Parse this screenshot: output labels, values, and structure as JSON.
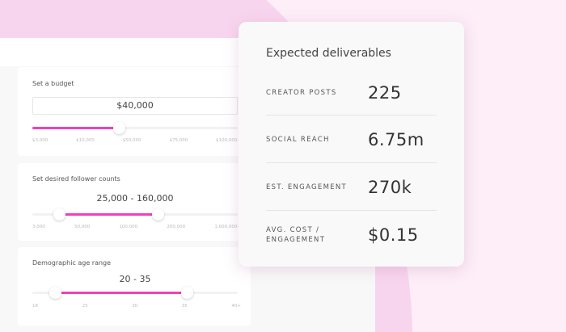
{
  "budget": {
    "label": "Set a budget",
    "value": "$40,000",
    "position": 0.42,
    "ticks": [
      "$3,000",
      "$10,000",
      "$50,000",
      "$75,000",
      "$100,000+"
    ]
  },
  "followers": {
    "label": "Set desired follower counts",
    "value": "25,000 - 160,000",
    "low": 0.13,
    "high": 0.61,
    "ticks": [
      "3,000",
      "50,000",
      "100,000",
      "200,000",
      "1,000,000+"
    ]
  },
  "age": {
    "label": "Demographic age range",
    "value": "20 - 35",
    "low": 0.11,
    "high": 0.75,
    "ticks": [
      "18",
      "25",
      "30",
      "35",
      "40+"
    ]
  },
  "deliverables": {
    "title": "Expected deliverables",
    "rows": [
      {
        "label": "CREATOR POSTS",
        "value": "225"
      },
      {
        "label": "SOCIAL REACH",
        "value": "6.75m"
      },
      {
        "label": "EST. ENGAGEMENT",
        "value": "270k"
      },
      {
        "label": "AVG. COST / ENGAGEMENT",
        "value": "$0.15"
      }
    ]
  },
  "colors": {
    "accent": "#f23fbd",
    "background": "#fdeef8",
    "blob": "#f8d5ee"
  }
}
